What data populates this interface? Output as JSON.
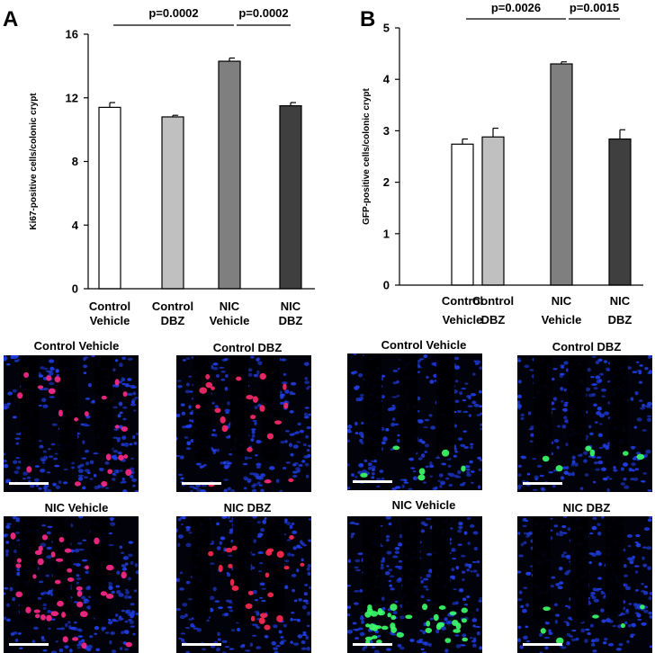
{
  "panels": {
    "a": {
      "letter": "A"
    },
    "b": {
      "letter": "B"
    }
  },
  "chart_data": [
    {
      "type": "bar",
      "panel": "A",
      "title": "",
      "xlabel": "",
      "ylabel": "Ki67-positive cells/colonic  crypt",
      "ylim": [
        0,
        16
      ],
      "yticks": [
        0,
        4,
        8,
        12,
        16
      ],
      "categories": [
        [
          "Control",
          "Vehicle"
        ],
        [
          "Control",
          "DBZ"
        ],
        [
          "NIC",
          "Vehicle"
        ],
        [
          "NIC",
          "DBZ"
        ]
      ],
      "values": [
        11.4,
        10.8,
        14.3,
        11.5
      ],
      "errors": [
        0.3,
        0.1,
        0.2,
        0.2
      ],
      "colors": [
        "#ffffff",
        "#c0c0c0",
        "#7f7f7f",
        "#3f3f3f"
      ],
      "grid": false,
      "annotations": [
        {
          "text": "p=0.0002",
          "from": 0,
          "to": 2
        },
        {
          "text": "p=0.0002",
          "from": 2,
          "to": 3
        }
      ]
    },
    {
      "type": "bar",
      "panel": "B",
      "title": "",
      "xlabel": "",
      "ylabel": "GFP-positive cells/colonic  crypt",
      "ylim": [
        0,
        5
      ],
      "yticks": [
        0,
        1,
        2,
        3,
        4,
        5
      ],
      "categories": [
        [
          "Control",
          "Vehicle"
        ],
        [
          "Control",
          "DBZ"
        ],
        [
          "NIC",
          "Vehicle"
        ],
        [
          "NIC",
          "DBZ"
        ]
      ],
      "values": [
        2.74,
        2.88,
        4.3,
        2.84
      ],
      "errors": [
        0.1,
        0.17,
        0.04,
        0.18
      ],
      "colors": [
        "#ffffff",
        "#c0c0c0",
        "#7f7f7f",
        "#3f3f3f"
      ],
      "grid": false,
      "annotations": [
        {
          "text": "p=0.0026",
          "from": 0,
          "to": 2
        },
        {
          "text": "p=0.0015",
          "from": 2,
          "to": 3
        }
      ]
    }
  ],
  "micrographs": [
    {
      "title": "Control Vehicle",
      "stain": "ki67",
      "nuclei_color": "#ff2a8a",
      "positive_level": "medium"
    },
    {
      "title": "Control DBZ",
      "stain": "ki67",
      "nuclei_color": "#ff2a6a",
      "positive_level": "medium"
    },
    {
      "title": "Control Vehicle",
      "stain": "gfp",
      "nuclei_color": "#3cff6a",
      "positive_level": "low"
    },
    {
      "title": "Control DBZ",
      "stain": "gfp",
      "nuclei_color": "#3cff6a",
      "positive_level": "low"
    },
    {
      "title": "NIC Vehicle",
      "stain": "ki67",
      "nuclei_color": "#ff2a8a",
      "positive_level": "high"
    },
    {
      "title": "NIC DBZ",
      "stain": "ki67",
      "nuclei_color": "#ff2a50",
      "positive_level": "medium"
    },
    {
      "title": "NIC Vehicle",
      "stain": "gfp",
      "nuclei_color": "#3cff6a",
      "positive_level": "high"
    },
    {
      "title": "NIC DBZ",
      "stain": "gfp",
      "nuclei_color": "#3cff6a",
      "positive_level": "low"
    }
  ],
  "colors": {
    "background_blue": "#1f3de0",
    "scale_bar": "#ffffff"
  }
}
